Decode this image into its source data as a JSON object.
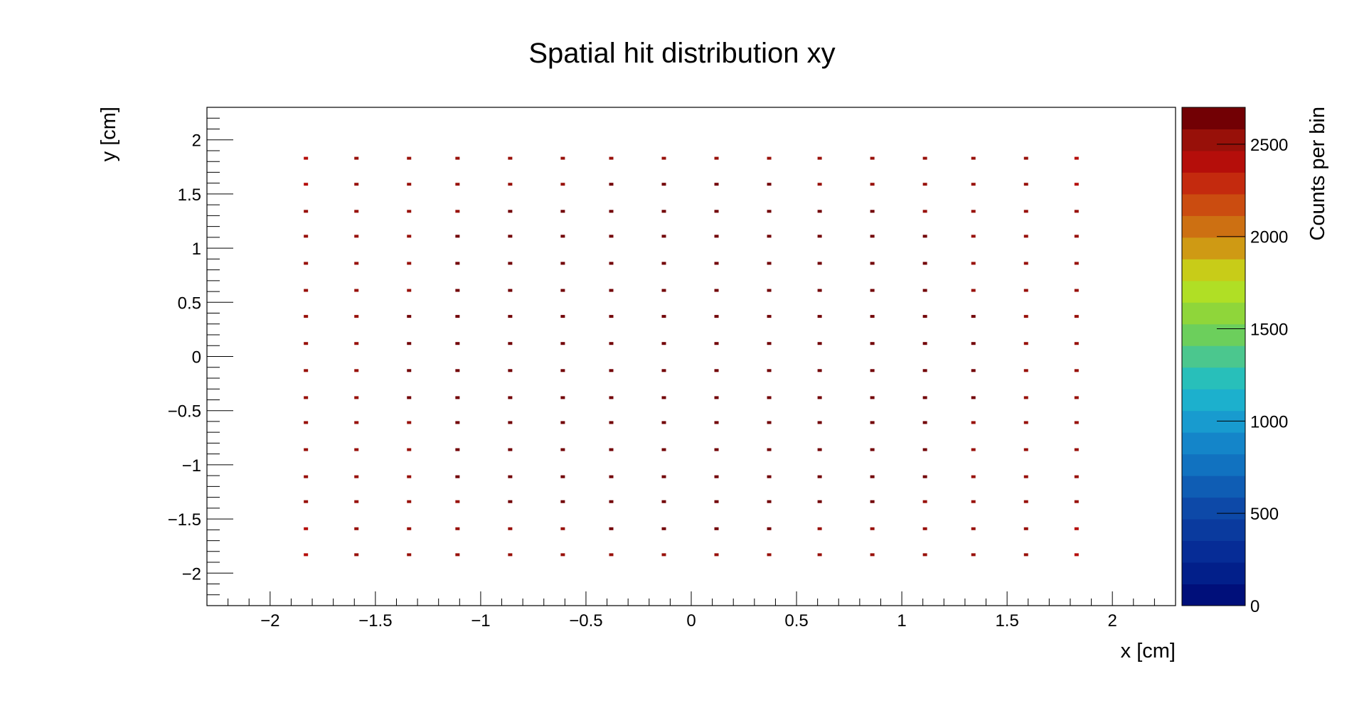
{
  "chart_data": {
    "type": "heatmap",
    "title": "Spatial hit distribution xy",
    "xlabel": "x [cm]",
    "ylabel": "y [cm]",
    "zlabel": "Counts per bin",
    "xlim": [
      -2.3,
      2.3
    ],
    "ylim": [
      -2.3,
      2.3
    ],
    "zlim": [
      0,
      2700
    ],
    "x_ticks": [
      -2,
      -1.5,
      -1,
      -0.5,
      0,
      0.5,
      1,
      1.5,
      2
    ],
    "x_tick_labels": [
      "−2",
      "−1.5",
      "−1",
      "−0.5",
      "0",
      "0.5",
      "1",
      "1.5",
      "2"
    ],
    "y_ticks": [
      -2,
      -1.5,
      -1,
      -0.5,
      0,
      0.5,
      1,
      1.5,
      2
    ],
    "y_tick_labels": [
      "−2",
      "−1.5",
      "−1",
      "−0.5",
      "0",
      "0.5",
      "1",
      "1.5",
      "2"
    ],
    "z_ticks": [
      0,
      500,
      1000,
      1500,
      2000,
      2500
    ],
    "z_tick_labels": [
      "0",
      "500",
      "1000",
      "1500",
      "2000",
      "2500"
    ],
    "palette": [
      "#000f7a",
      "#021f8a",
      "#062c96",
      "#0a3a9e",
      "#0d49a8",
      "#0f5db4",
      "#1172c0",
      "#1485c9",
      "#189bcf",
      "#1cb0cd",
      "#28bfba",
      "#4bc78e",
      "#6ccf5c",
      "#8fd63a",
      "#b0df25",
      "#c8cc18",
      "#cf9a14",
      "#cd7012",
      "#cb4c10",
      "#c42a0e",
      "#b50e0a",
      "#981009",
      "#720004"
    ],
    "cell_x": [
      -1.83,
      -1.59,
      -1.34,
      -1.11,
      -0.86,
      -0.61,
      -0.38,
      -0.13,
      0.12,
      0.37,
      0.61,
      0.86,
      1.11,
      1.34,
      1.59,
      1.83
    ],
    "cell_y": [
      1.83,
      1.59,
      1.34,
      1.11,
      0.86,
      0.61,
      0.37,
      0.12,
      -0.13,
      -0.38,
      -0.61,
      -0.86,
      -1.11,
      -1.34,
      -1.59,
      -1.83
    ],
    "cell_counts": [
      [
        2440,
        2480,
        2500,
        2520,
        2530,
        2540,
        2550,
        2560,
        2560,
        2550,
        2540,
        2530,
        2520,
        2500,
        2480,
        2440
      ],
      [
        2460,
        2500,
        2530,
        2550,
        2570,
        2580,
        2590,
        2600,
        2600,
        2590,
        2580,
        2570,
        2550,
        2530,
        2500,
        2460
      ],
      [
        2470,
        2520,
        2550,
        2580,
        2600,
        2610,
        2620,
        2630,
        2630,
        2620,
        2610,
        2600,
        2580,
        2550,
        2520,
        2470
      ],
      [
        2480,
        2530,
        2570,
        2600,
        2620,
        2630,
        2640,
        2650,
        2650,
        2640,
        2630,
        2620,
        2600,
        2570,
        2530,
        2480
      ],
      [
        2490,
        2540,
        2580,
        2610,
        2630,
        2650,
        2660,
        2670,
        2670,
        2660,
        2650,
        2630,
        2610,
        2580,
        2540,
        2490
      ],
      [
        2490,
        2540,
        2580,
        2620,
        2640,
        2660,
        2670,
        2680,
        2680,
        2670,
        2660,
        2640,
        2620,
        2580,
        2540,
        2490
      ],
      [
        2500,
        2550,
        2590,
        2620,
        2650,
        2660,
        2670,
        2690,
        2690,
        2670,
        2660,
        2650,
        2620,
        2590,
        2550,
        2500
      ],
      [
        2500,
        2550,
        2590,
        2620,
        2650,
        2670,
        2680,
        2690,
        2690,
        2680,
        2670,
        2650,
        2620,
        2590,
        2550,
        2500
      ],
      [
        2500,
        2550,
        2590,
        2620,
        2650,
        2670,
        2680,
        2690,
        2690,
        2680,
        2670,
        2650,
        2620,
        2590,
        2550,
        2500
      ],
      [
        2500,
        2550,
        2590,
        2620,
        2650,
        2660,
        2670,
        2690,
        2690,
        2670,
        2660,
        2650,
        2620,
        2590,
        2550,
        2500
      ],
      [
        2490,
        2540,
        2580,
        2620,
        2640,
        2660,
        2670,
        2680,
        2680,
        2670,
        2660,
        2640,
        2620,
        2580,
        2540,
        2490
      ],
      [
        2490,
        2540,
        2580,
        2610,
        2630,
        2650,
        2660,
        2670,
        2670,
        2660,
        2650,
        2630,
        2610,
        2580,
        2540,
        2490
      ],
      [
        2480,
        2530,
        2570,
        2600,
        2620,
        2630,
        2640,
        2650,
        2650,
        2640,
        2630,
        2620,
        2600,
        2570,
        2530,
        2480
      ],
      [
        2470,
        2520,
        2550,
        2580,
        2600,
        2610,
        2620,
        2630,
        2630,
        2620,
        2610,
        2600,
        2580,
        2550,
        2520,
        2470
      ],
      [
        2460,
        2500,
        2530,
        2550,
        2570,
        2580,
        2590,
        2600,
        2600,
        2590,
        2580,
        2570,
        2550,
        2530,
        2500,
        2460
      ],
      [
        2440,
        2480,
        2500,
        2520,
        2530,
        2540,
        2550,
        2560,
        2560,
        2550,
        2540,
        2530,
        2520,
        2500,
        2480,
        2440
      ]
    ]
  }
}
